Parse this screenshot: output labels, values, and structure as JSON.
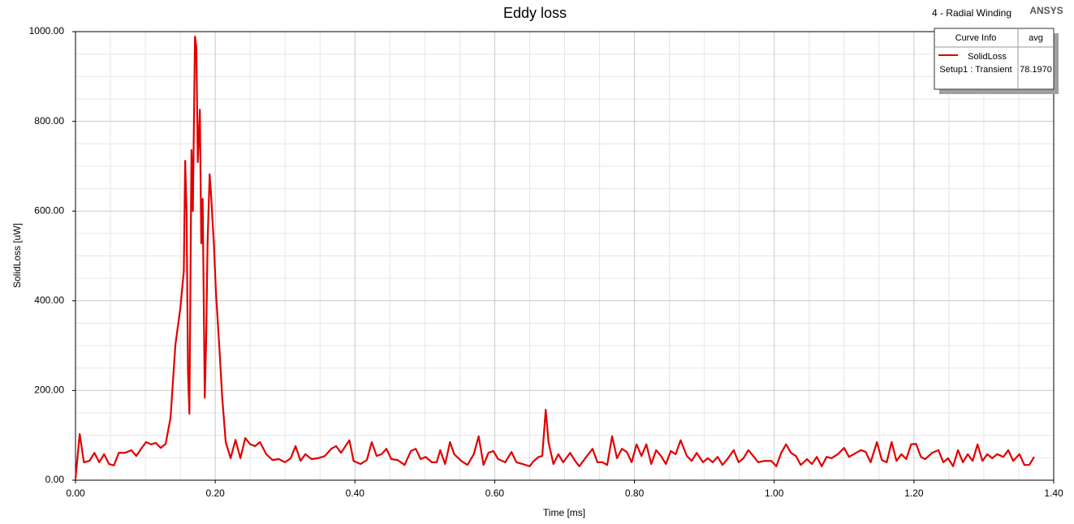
{
  "chart_data": {
    "type": "line",
    "title": "Eddy loss",
    "annotations": [
      "4 - Radial Winding",
      "ANSYS"
    ],
    "x_label": "Time [ms]",
    "y_label": "SolidLoss [uW]",
    "xlim": [
      0,
      1.4
    ],
    "ylim": [
      0,
      1000
    ],
    "xticks": [
      {
        "value": 0,
        "label": "0.00"
      },
      {
        "value": 0.2,
        "label": "0.20"
      },
      {
        "value": 0.4,
        "label": "0.40"
      },
      {
        "value": 0.6,
        "label": "0.60"
      },
      {
        "value": 0.8,
        "label": "0.80"
      },
      {
        "value": 1.0,
        "label": "1.00"
      },
      {
        "value": 1.2,
        "label": "1.20"
      },
      {
        "value": 1.4,
        "label": "1.40"
      }
    ],
    "yticks": [
      {
        "value": 0,
        "label": "0.00"
      },
      {
        "value": 200,
        "label": "200.00"
      },
      {
        "value": 400,
        "label": "400.00"
      },
      {
        "value": 600,
        "label": "600.00"
      },
      {
        "value": 800,
        "label": "800.00"
      },
      {
        "value": 1000,
        "label": "1000.00"
      }
    ],
    "grid": true,
    "legend": {
      "header": [
        "Curve Info",
        "avg"
      ],
      "setup": "Setup1 : Transient",
      "avg": "78.1970"
    },
    "x": [
      0,
      0.006,
      0.012,
      0.02,
      0.027,
      0.034,
      0.041,
      0.048,
      0.055,
      0.062,
      0.071,
      0.08,
      0.087,
      0.094,
      0.101,
      0.108,
      0.115,
      0.122,
      0.129,
      0.136,
      0.143,
      0.15,
      0.155,
      0.157,
      0.159,
      0.161,
      0.163,
      0.166,
      0.168,
      0.171,
      0.173,
      0.175,
      0.178,
      0.18,
      0.182,
      0.185,
      0.187,
      0.189,
      0.192,
      0.194,
      0.198,
      0.201,
      0.206,
      0.21,
      0.215,
      0.222,
      0.229,
      0.236,
      0.243,
      0.25,
      0.257,
      0.264,
      0.273,
      0.282,
      0.291,
      0.3,
      0.308,
      0.315,
      0.322,
      0.329,
      0.338,
      0.347,
      0.357,
      0.366,
      0.373,
      0.38,
      0.392,
      0.398,
      0.408,
      0.417,
      0.424,
      0.431,
      0.438,
      0.445,
      0.452,
      0.461,
      0.471,
      0.48,
      0.487,
      0.494,
      0.501,
      0.51,
      0.517,
      0.522,
      0.529,
      0.536,
      0.542,
      0.552,
      0.561,
      0.57,
      0.577,
      0.584,
      0.591,
      0.598,
      0.605,
      0.615,
      0.624,
      0.631,
      0.64,
      0.65,
      0.656,
      0.663,
      0.668,
      0.673,
      0.677,
      0.684,
      0.691,
      0.698,
      0.708,
      0.715,
      0.721,
      0.731,
      0.74,
      0.747,
      0.754,
      0.761,
      0.768,
      0.775,
      0.782,
      0.789,
      0.796,
      0.803,
      0.81,
      0.817,
      0.824,
      0.831,
      0.838,
      0.845,
      0.852,
      0.859,
      0.866,
      0.875,
      0.882,
      0.889,
      0.898,
      0.905,
      0.912,
      0.919,
      0.926,
      0.933,
      0.942,
      0.949,
      0.956,
      0.963,
      0.97,
      0.977,
      0.986,
      0.996,
      1.003,
      1.01,
      1.017,
      1.024,
      1.031,
      1.038,
      1.047,
      1.054,
      1.061,
      1.068,
      1.075,
      1.082,
      1.091,
      1.1,
      1.107,
      1.114,
      1.124,
      1.131,
      1.138,
      1.147,
      1.154,
      1.161,
      1.168,
      1.175,
      1.182,
      1.189,
      1.196,
      1.203,
      1.21,
      1.216,
      1.226,
      1.235,
      1.242,
      1.249,
      1.256,
      1.263,
      1.27,
      1.277,
      1.284,
      1.291,
      1.298,
      1.305,
      1.312,
      1.319,
      1.328,
      1.335,
      1.342,
      1.351,
      1.358,
      1.365,
      1.372
    ],
    "series": [
      {
        "name": "SolidLoss",
        "color": "#e00000",
        "values": [
          3,
          103,
          40,
          43,
          61,
          40,
          58,
          36,
          33,
          61,
          61,
          67,
          54,
          70,
          85,
          80,
          83,
          72,
          81,
          139,
          302,
          383,
          465,
          712,
          597,
          239,
          148,
          736,
          600,
          989,
          966,
          709,
          826,
          528,
          627,
          184,
          311,
          528,
          682,
          637,
          528,
          420,
          293,
          184,
          85,
          49,
          90,
          49,
          94,
          80,
          76,
          85,
          58,
          45,
          47,
          40,
          49,
          76,
          43,
          58,
          47,
          49,
          54,
          70,
          76,
          61,
          89,
          43,
          36,
          45,
          85,
          54,
          58,
          70,
          47,
          45,
          34,
          65,
          70,
          47,
          52,
          40,
          40,
          67,
          36,
          85,
          58,
          43,
          34,
          58,
          98,
          34,
          61,
          65,
          47,
          40,
          63,
          40,
          36,
          31,
          43,
          52,
          54,
          157,
          85,
          36,
          58,
          40,
          61,
          43,
          31,
          52,
          70,
          40,
          40,
          34,
          98,
          49,
          70,
          63,
          40,
          80,
          54,
          80,
          36,
          67,
          54,
          36,
          65,
          58,
          89,
          54,
          43,
          61,
          40,
          49,
          40,
          52,
          34,
          47,
          67,
          40,
          49,
          67,
          54,
          40,
          43,
          43,
          31,
          61,
          80,
          61,
          54,
          34,
          47,
          36,
          52,
          31,
          52,
          49,
          58,
          72,
          52,
          58,
          67,
          63,
          40,
          85,
          45,
          40,
          85,
          43,
          58,
          47,
          80,
          81,
          52,
          47,
          61,
          67,
          40,
          49,
          31,
          67,
          40,
          58,
          43,
          80,
          43,
          58,
          49,
          58,
          52,
          67,
          43,
          58,
          34,
          34,
          52
        ]
      }
    ]
  }
}
